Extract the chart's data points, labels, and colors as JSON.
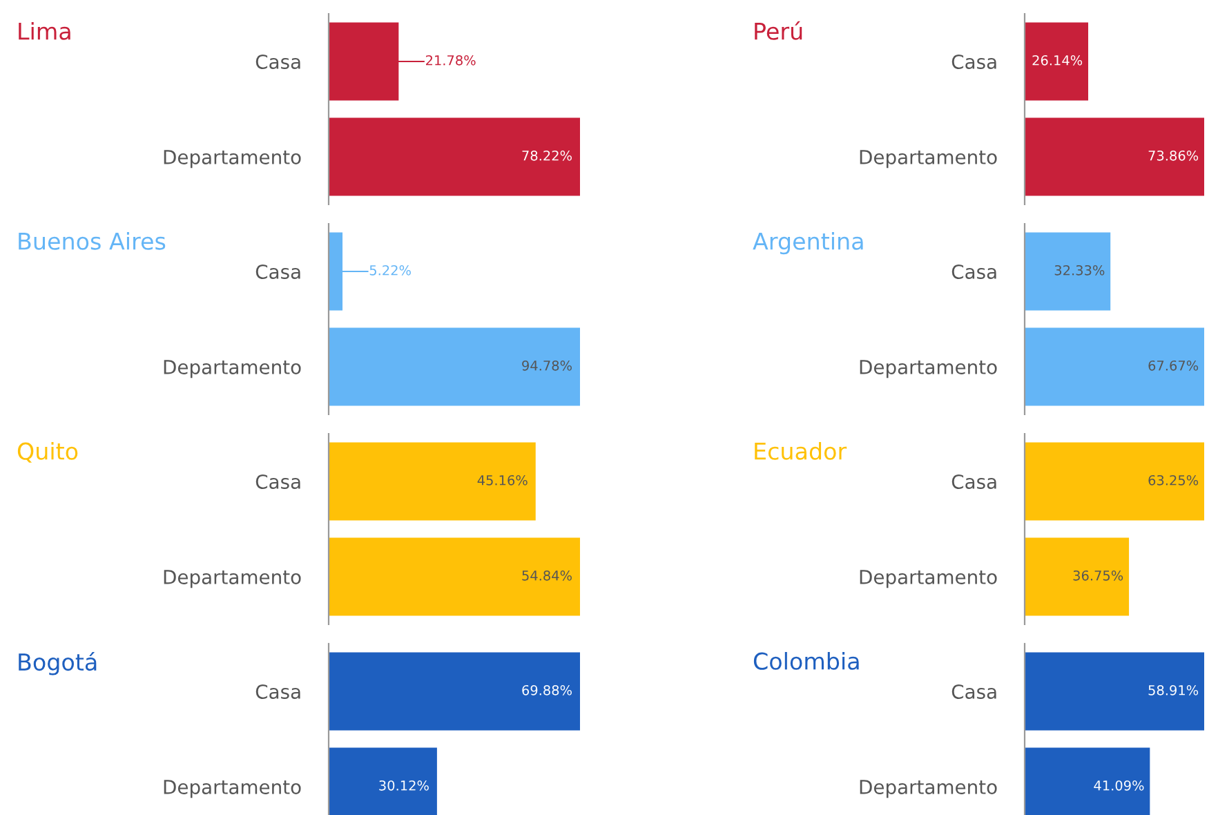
{
  "chart_data": [
    {
      "type": "bar",
      "orientation": "horizontal",
      "title": "Lima",
      "categories": [
        "Casa",
        "Departamento"
      ],
      "values": [
        21.78,
        78.22
      ],
      "value_labels": [
        "21.78%",
        "78.22%"
      ],
      "color": "#c8203a",
      "tick_labels": "y"
    },
    {
      "type": "bar",
      "orientation": "horizontal",
      "title": "Perú",
      "categories": [
        "Casa",
        "Departamento"
      ],
      "values": [
        26.14,
        73.86
      ],
      "value_labels": [
        "26.14%",
        "73.86%"
      ],
      "color": "#c8203a",
      "tick_labels": "y"
    },
    {
      "type": "bar",
      "orientation": "horizontal",
      "title": "Buenos Aires",
      "categories": [
        "Casa",
        "Departamento"
      ],
      "values": [
        5.22,
        94.78
      ],
      "value_labels": [
        "5.22%",
        "94.78%"
      ],
      "color": "#64b5f6",
      "tick_labels": "y"
    },
    {
      "type": "bar",
      "orientation": "horizontal",
      "title": "Argentina",
      "categories": [
        "Casa",
        "Departamento"
      ],
      "values": [
        32.33,
        67.67
      ],
      "value_labels": [
        "32.33%",
        "67.67%"
      ],
      "color": "#64b5f6",
      "tick_labels": "y"
    },
    {
      "type": "bar",
      "orientation": "horizontal",
      "title": "Quito",
      "categories": [
        "Casa",
        "Departamento"
      ],
      "values": [
        45.16,
        54.84
      ],
      "value_labels": [
        "45.16%",
        "54.84%"
      ],
      "color": "#ffc107",
      "tick_labels": "y"
    },
    {
      "type": "bar",
      "orientation": "horizontal",
      "title": "Ecuador",
      "categories": [
        "Casa",
        "Departamento"
      ],
      "values": [
        63.25,
        36.75
      ],
      "value_labels": [
        "63.25%",
        "36.75%"
      ],
      "color": "#ffc107",
      "tick_labels": "y"
    },
    {
      "type": "bar",
      "orientation": "horizontal",
      "title": "Bogotá",
      "categories": [
        "Casa",
        "Departamento"
      ],
      "values": [
        69.88,
        30.12
      ],
      "value_labels": [
        "69.88%",
        "30.12%"
      ],
      "color": "#1e5fbf",
      "tick_labels": "y"
    },
    {
      "type": "bar",
      "orientation": "horizontal",
      "title": "Colombia",
      "categories": [
        "Casa",
        "Departamento"
      ],
      "values": [
        58.91,
        41.09
      ],
      "value_labels": [
        "58.91%",
        "41.09%"
      ],
      "color": "#1e5fbf",
      "tick_labels": "y"
    }
  ]
}
